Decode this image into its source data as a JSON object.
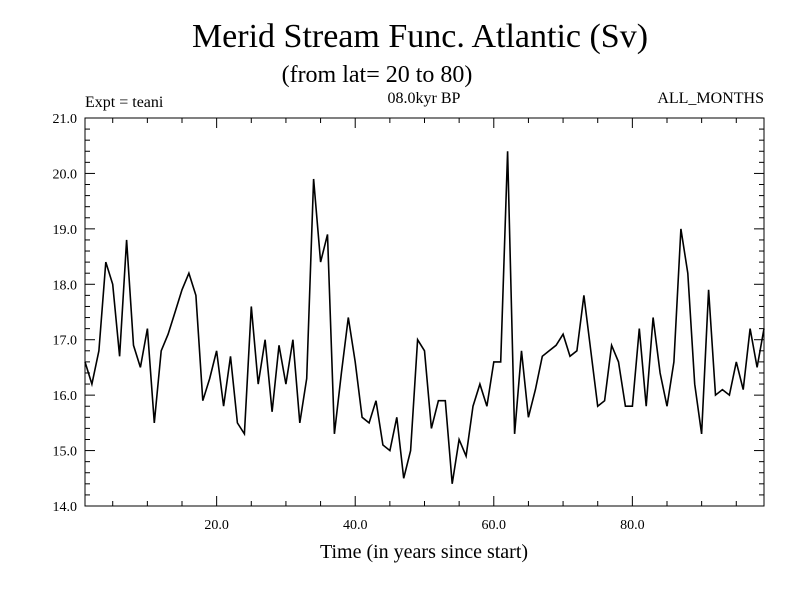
{
  "chart_data": {
    "type": "line",
    "title": "Merid Stream Func. Atlantic (Sv)",
    "subtitle": "(from lat= 20 to 80)",
    "left_note": "Expt = teani",
    "center_note": "08.0kyr BP",
    "right_note": "ALL_MONTHS",
    "xlabel": "Time (in years since start)",
    "ylabel": "",
    "xlim": [
      1,
      99
    ],
    "ylim": [
      14.0,
      21.0
    ],
    "x_ticks": [
      20,
      40,
      60,
      80
    ],
    "x_tick_labels": [
      "20.0",
      "40.0",
      "60.0",
      "80.0"
    ],
    "y_ticks": [
      14,
      15,
      16,
      17,
      18,
      19,
      20,
      21
    ],
    "y_tick_labels": [
      "14.0",
      "15.0",
      "16.0",
      "17.0",
      "18.0",
      "19.0",
      "20.0",
      "21.0"
    ],
    "grid": false,
    "series": [
      {
        "name": "Merid Stream Func",
        "x": [
          1,
          2,
          3,
          4,
          5,
          6,
          7,
          8,
          9,
          10,
          11,
          12,
          13,
          14,
          15,
          16,
          17,
          18,
          19,
          20,
          21,
          22,
          23,
          24,
          25,
          26,
          27,
          28,
          29,
          30,
          31,
          32,
          33,
          34,
          35,
          36,
          37,
          38,
          39,
          40,
          41,
          42,
          43,
          44,
          45,
          46,
          47,
          48,
          49,
          50,
          51,
          52,
          53,
          54,
          55,
          56,
          57,
          58,
          59,
          60,
          61,
          62,
          63,
          64,
          65,
          66,
          67,
          68,
          69,
          70,
          71,
          72,
          73,
          74,
          75,
          76,
          77,
          78,
          79,
          80,
          81,
          82,
          83,
          84,
          85,
          86,
          87,
          88,
          89,
          90,
          91,
          92,
          93,
          94,
          95,
          96,
          97,
          98,
          99
        ],
        "values": [
          16.6,
          16.2,
          16.8,
          18.4,
          18.0,
          16.7,
          18.8,
          16.9,
          16.5,
          17.2,
          15.5,
          16.8,
          17.1,
          17.5,
          17.9,
          18.2,
          17.8,
          15.9,
          16.3,
          16.8,
          15.8,
          16.7,
          15.5,
          15.3,
          17.6,
          16.2,
          17.0,
          15.7,
          16.9,
          16.2,
          17.0,
          15.5,
          16.3,
          19.9,
          18.4,
          18.9,
          15.3,
          16.4,
          17.4,
          16.6,
          15.6,
          15.5,
          15.9,
          15.1,
          15.0,
          15.6,
          14.5,
          15.0,
          17.0,
          16.8,
          15.4,
          15.9,
          15.9,
          14.4,
          15.2,
          14.9,
          15.8,
          16.2,
          15.8,
          16.6,
          16.6,
          20.4,
          15.3,
          16.8,
          15.6,
          16.1,
          16.7,
          16.8,
          16.9,
          17.1,
          16.7,
          16.8,
          17.8,
          16.8,
          15.8,
          15.9,
          16.9,
          16.6,
          15.8,
          15.8,
          17.2,
          15.8,
          17.4,
          16.4,
          15.8,
          16.6,
          19.0,
          18.2,
          16.2,
          15.3,
          17.9,
          16.0,
          16.1,
          16.0,
          16.6,
          16.1,
          17.2,
          16.5,
          17.2
        ]
      }
    ]
  }
}
